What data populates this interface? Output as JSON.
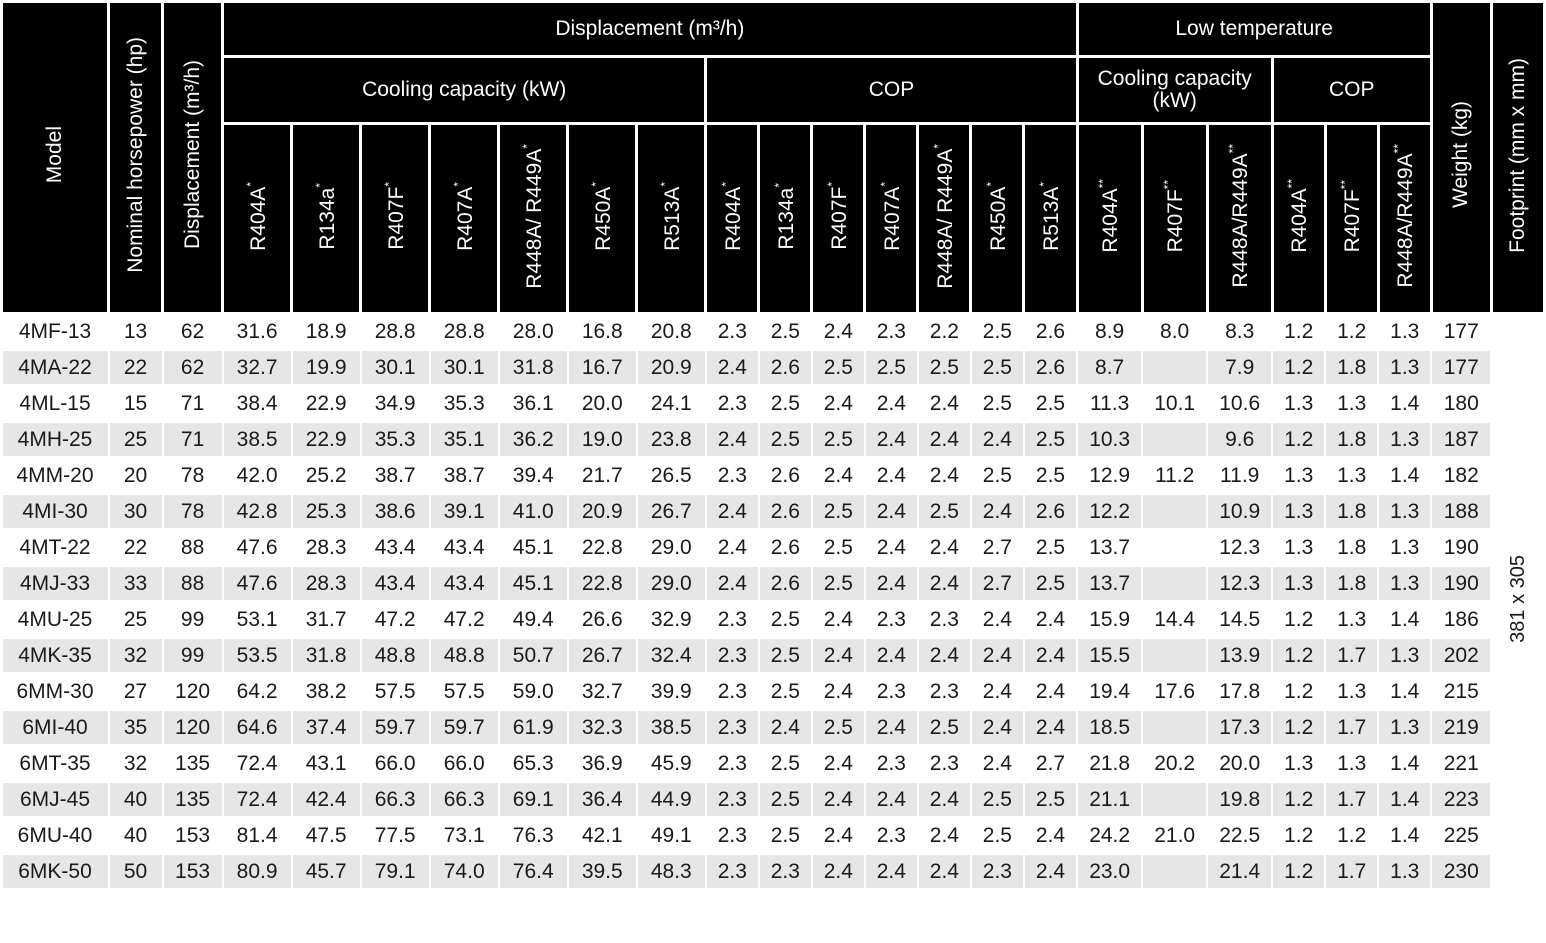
{
  "headers": {
    "model": "Model",
    "nominal_hp": "Nominal horsepower (hp)",
    "displacement": "Displacement (m³/h)",
    "group_main": "Displacement (m³/h)",
    "group_low": "Low temperature",
    "cooling_capacity": "Cooling capacity (kW)",
    "cop": "COP",
    "low_cooling_capacity": "Cooling capacity (kW)",
    "low_cop": "COP",
    "weight": "Weight (kg)",
    "footprint": "Footprint (mm x mm)",
    "cooling_refrigerants": [
      {
        "name": "R404A",
        "mark": "*"
      },
      {
        "name": "R134a",
        "mark": "*"
      },
      {
        "name": "R407F",
        "mark": "*"
      },
      {
        "name": "R407A",
        "mark": "*"
      },
      {
        "name": "R448A/ R449A",
        "mark": "*"
      },
      {
        "name": "R450A",
        "mark": "*"
      },
      {
        "name": "R513A",
        "mark": "*"
      }
    ],
    "cop_refrigerants": [
      {
        "name": "R404A",
        "mark": "*"
      },
      {
        "name": "R134a",
        "mark": "*"
      },
      {
        "name": "R407F",
        "mark": "*"
      },
      {
        "name": "R407A",
        "mark": "*"
      },
      {
        "name": "R448A/ R449A",
        "mark": "*"
      },
      {
        "name": "R450A",
        "mark": "*"
      },
      {
        "name": "R513A",
        "mark": "*"
      }
    ],
    "low_cooling_refrigerants": [
      {
        "name": "R404A",
        "mark": "**"
      },
      {
        "name": "R407F",
        "mark": "**"
      },
      {
        "name": "R448A/R449A",
        "mark": "**"
      }
    ],
    "low_cop_refrigerants": [
      {
        "name": "R404A",
        "mark": "**"
      },
      {
        "name": "R407F",
        "mark": "**"
      },
      {
        "name": "R448A/R449A",
        "mark": "**"
      }
    ]
  },
  "footprint_value": "381 x 305",
  "rows": [
    [
      "4MF-13",
      "13",
      "62",
      "31.6",
      "18.9",
      "28.8",
      "28.8",
      "28.0",
      "16.8",
      "20.8",
      "2.3",
      "2.5",
      "2.4",
      "2.3",
      "2.2",
      "2.5",
      "2.6",
      "8.9",
      "8.0",
      "8.3",
      "1.2",
      "1.2",
      "1.3",
      "177"
    ],
    [
      "4MA-22",
      "22",
      "62",
      "32.7",
      "19.9",
      "30.1",
      "30.1",
      "31.8",
      "16.7",
      "20.9",
      "2.4",
      "2.6",
      "2.5",
      "2.5",
      "2.5",
      "2.5",
      "2.6",
      "8.7",
      "",
      "7.9",
      "1.2",
      "1.8",
      "1.3",
      "177"
    ],
    [
      "4ML-15",
      "15",
      "71",
      "38.4",
      "22.9",
      "34.9",
      "35.3",
      "36.1",
      "20.0",
      "24.1",
      "2.3",
      "2.5",
      "2.4",
      "2.4",
      "2.4",
      "2.5",
      "2.5",
      "11.3",
      "10.1",
      "10.6",
      "1.3",
      "1.3",
      "1.4",
      "180"
    ],
    [
      "4MH-25",
      "25",
      "71",
      "38.5",
      "22.9",
      "35.3",
      "35.1",
      "36.2",
      "19.0",
      "23.8",
      "2.4",
      "2.5",
      "2.5",
      "2.4",
      "2.4",
      "2.4",
      "2.5",
      "10.3",
      "",
      "9.6",
      "1.2",
      "1.8",
      "1.3",
      "187"
    ],
    [
      "4MM-20",
      "20",
      "78",
      "42.0",
      "25.2",
      "38.7",
      "38.7",
      "39.4",
      "21.7",
      "26.5",
      "2.3",
      "2.6",
      "2.4",
      "2.4",
      "2.4",
      "2.5",
      "2.5",
      "12.9",
      "11.2",
      "11.9",
      "1.3",
      "1.3",
      "1.4",
      "182"
    ],
    [
      "4MI-30",
      "30",
      "78",
      "42.8",
      "25.3",
      "38.6",
      "39.1",
      "41.0",
      "20.9",
      "26.7",
      "2.4",
      "2.6",
      "2.5",
      "2.4",
      "2.5",
      "2.4",
      "2.6",
      "12.2",
      "",
      "10.9",
      "1.3",
      "1.8",
      "1.3",
      "188"
    ],
    [
      "4MT-22",
      "22",
      "88",
      "47.6",
      "28.3",
      "43.4",
      "43.4",
      "45.1",
      "22.8",
      "29.0",
      "2.4",
      "2.6",
      "2.5",
      "2.4",
      "2.4",
      "2.7",
      "2.5",
      "13.7",
      "",
      "12.3",
      "1.3",
      "1.8",
      "1.3",
      "190"
    ],
    [
      "4MJ-33",
      "33",
      "88",
      "47.6",
      "28.3",
      "43.4",
      "43.4",
      "45.1",
      "22.8",
      "29.0",
      "2.4",
      "2.6",
      "2.5",
      "2.4",
      "2.4",
      "2.7",
      "2.5",
      "13.7",
      "",
      "12.3",
      "1.3",
      "1.8",
      "1.3",
      "190"
    ],
    [
      "4MU-25",
      "25",
      "99",
      "53.1",
      "31.7",
      "47.2",
      "47.2",
      "49.4",
      "26.6",
      "32.9",
      "2.3",
      "2.5",
      "2.4",
      "2.3",
      "2.3",
      "2.4",
      "2.4",
      "15.9",
      "14.4",
      "14.5",
      "1.2",
      "1.3",
      "1.4",
      "186"
    ],
    [
      "4MK-35",
      "32",
      "99",
      "53.5",
      "31.8",
      "48.8",
      "48.8",
      "50.7",
      "26.7",
      "32.4",
      "2.3",
      "2.5",
      "2.4",
      "2.4",
      "2.4",
      "2.4",
      "2.4",
      "15.5",
      "",
      "13.9",
      "1.2",
      "1.7",
      "1.3",
      "202"
    ],
    [
      "6MM-30",
      "27",
      "120",
      "64.2",
      "38.2",
      "57.5",
      "57.5",
      "59.0",
      "32.7",
      "39.9",
      "2.3",
      "2.5",
      "2.4",
      "2.3",
      "2.3",
      "2.4",
      "2.4",
      "19.4",
      "17.6",
      "17.8",
      "1.2",
      "1.3",
      "1.4",
      "215"
    ],
    [
      "6MI-40",
      "35",
      "120",
      "64.6",
      "37.4",
      "59.7",
      "59.7",
      "61.9",
      "32.3",
      "38.5",
      "2.3",
      "2.4",
      "2.5",
      "2.4",
      "2.5",
      "2.4",
      "2.4",
      "18.5",
      "",
      "17.3",
      "1.2",
      "1.7",
      "1.3",
      "219"
    ],
    [
      "6MT-35",
      "32",
      "135",
      "72.4",
      "43.1",
      "66.0",
      "66.0",
      "65.3",
      "36.9",
      "45.9",
      "2.3",
      "2.5",
      "2.4",
      "2.3",
      "2.3",
      "2.4",
      "2.7",
      "21.8",
      "20.2",
      "20.0",
      "1.3",
      "1.3",
      "1.4",
      "221"
    ],
    [
      "6MJ-45",
      "40",
      "135",
      "72.4",
      "42.4",
      "66.3",
      "66.3",
      "69.1",
      "36.4",
      "44.9",
      "2.3",
      "2.5",
      "2.4",
      "2.4",
      "2.4",
      "2.5",
      "2.5",
      "21.1",
      "",
      "19.8",
      "1.2",
      "1.7",
      "1.4",
      "223"
    ],
    [
      "6MU-40",
      "40",
      "153",
      "81.4",
      "47.5",
      "77.5",
      "73.1",
      "76.3",
      "42.1",
      "49.1",
      "2.3",
      "2.5",
      "2.4",
      "2.3",
      "2.4",
      "2.5",
      "2.4",
      "24.2",
      "21.0",
      "22.5",
      "1.2",
      "1.2",
      "1.4",
      "225"
    ],
    [
      "6MK-50",
      "50",
      "153",
      "80.9",
      "45.7",
      "79.1",
      "74.0",
      "76.4",
      "39.5",
      "48.3",
      "2.3",
      "2.3",
      "2.4",
      "2.4",
      "2.4",
      "2.3",
      "2.4",
      "23.0",
      "",
      "21.4",
      "1.2",
      "1.7",
      "1.3",
      "230"
    ]
  ]
}
